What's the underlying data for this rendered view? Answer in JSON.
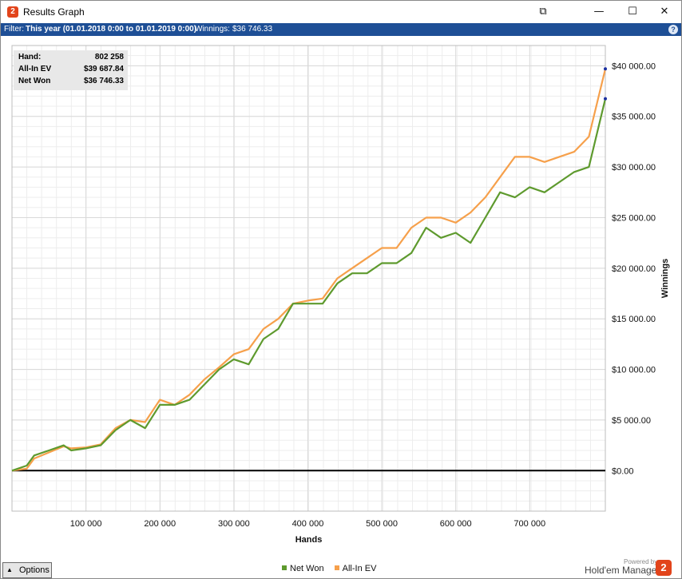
{
  "window": {
    "title": "Results Graph",
    "app_badge": "2",
    "controls": {
      "restore_glyph": "⧉",
      "minimize_glyph": "—",
      "maximize_glyph": "☐",
      "close_glyph": "✕"
    }
  },
  "filter": {
    "label": "Filter:",
    "value": "This year (01.01.2018 0:00 to 01.01.2019 0:00)",
    "winnings_label": "Winnings:",
    "winnings_value": "$36 746.33",
    "help_glyph": "?"
  },
  "summary": {
    "hands_label": "Hand:",
    "hands_value": "802 258",
    "allin_label": "All-In EV",
    "allin_value": "$39 687.84",
    "net_label": "Net Won",
    "net_value": "$36 746.33"
  },
  "footer": {
    "options_label": "Options",
    "options_glyph": "▲",
    "powered_by": "Powered by",
    "brand": "Hold'em Manager",
    "brand_badge": "2"
  },
  "colors": {
    "net_won": "#5e9a2e",
    "allin_ev": "#f6a04b",
    "background": "#ffffff",
    "grid": "#d9d9d9",
    "filterbar": "#1e4f96"
  },
  "chart_data": {
    "type": "line",
    "xlabel": "Hands",
    "ylabel": "Winnings",
    "xlim": [
      0,
      802258
    ],
    "ylim": [
      -4000,
      42000
    ],
    "x_ticks": [
      100000,
      200000,
      300000,
      400000,
      500000,
      600000,
      700000
    ],
    "x_tick_labels": [
      "100 000",
      "200 000",
      "300 000",
      "400 000",
      "500 000",
      "600 000",
      "700 000"
    ],
    "y_ticks": [
      0,
      5000,
      10000,
      15000,
      20000,
      25000,
      30000,
      35000,
      40000
    ],
    "y_tick_labels": [
      "$0.00",
      "$5 000.00",
      "$10 000.00",
      "$15 000.00",
      "$20 000.00",
      "$25 000.00",
      "$30 000.00",
      "$35 000.00",
      "$40 000.00"
    ],
    "grid": true,
    "legend": "bottom-center",
    "x": [
      0,
      20000,
      30000,
      50000,
      70000,
      80000,
      100000,
      120000,
      140000,
      160000,
      180000,
      200000,
      220000,
      240000,
      260000,
      280000,
      300000,
      320000,
      340000,
      360000,
      380000,
      400000,
      420000,
      440000,
      460000,
      480000,
      500000,
      520000,
      540000,
      560000,
      580000,
      600000,
      620000,
      640000,
      660000,
      680000,
      700000,
      720000,
      740000,
      760000,
      780000,
      802258
    ],
    "series": [
      {
        "name": "Net Won",
        "values": [
          0,
          500,
          1500,
          2000,
          2500,
          2000,
          2200,
          2500,
          4000,
          5000,
          4200,
          6500,
          6500,
          7000,
          8500,
          10000,
          11000,
          10500,
          13000,
          14000,
          16500,
          16500,
          16500,
          18500,
          19500,
          19500,
          20500,
          20500,
          21500,
          24000,
          23000,
          23500,
          22500,
          25000,
          27500,
          27000,
          28000,
          27500,
          28500,
          29500,
          30000,
          36746.33
        ]
      },
      {
        "name": "All-In EV",
        "values": [
          0,
          200,
          1200,
          1800,
          2400,
          2200,
          2300,
          2600,
          4200,
          5000,
          4800,
          7000,
          6500,
          7500,
          9000,
          10200,
          11500,
          12000,
          14000,
          15000,
          16500,
          16800,
          17000,
          19000,
          20000,
          21000,
          22000,
          22000,
          24000,
          25000,
          25000,
          24500,
          25500,
          27000,
          29000,
          31000,
          31000,
          30500,
          31000,
          31500,
          33000,
          39687.84
        ]
      }
    ]
  }
}
